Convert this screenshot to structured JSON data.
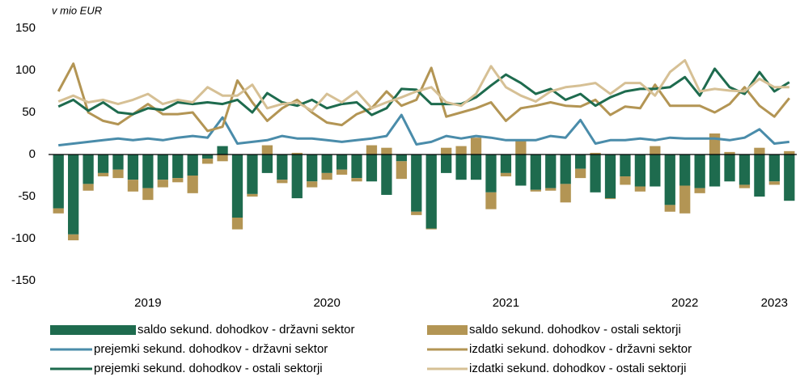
{
  "chart_data": {
    "type": "bar-line",
    "annotation": "v mio EUR",
    "categories": [
      null,
      null,
      null,
      null,
      null,
      null,
      "2019",
      null,
      null,
      null,
      null,
      null,
      null,
      null,
      null,
      null,
      null,
      null,
      "2020",
      null,
      null,
      null,
      null,
      null,
      null,
      null,
      null,
      null,
      null,
      null,
      "2021",
      null,
      null,
      null,
      null,
      null,
      null,
      null,
      null,
      null,
      null,
      null,
      "2022",
      null,
      null,
      null,
      null,
      null,
      "2023",
      null
    ],
    "ylim": [
      -150,
      150
    ],
    "yticks": [
      -150,
      -100,
      -50,
      0,
      50,
      100,
      150
    ],
    "series": [
      {
        "name": "saldo sekund. dohodkov - državni sektor",
        "kind": "bar",
        "color": "#1e6b4e",
        "values": [
          -64,
          -95,
          -35,
          -22,
          -18,
          -30,
          -40,
          -30,
          -28,
          -25,
          -5,
          10,
          -75,
          -47,
          -22,
          -30,
          -52,
          -32,
          -22,
          -18,
          -28,
          -32,
          -48,
          -8,
          -68,
          -88,
          -22,
          -30,
          -30,
          -45,
          -22,
          -37,
          -42,
          -40,
          -35,
          -17,
          -45,
          -52,
          -26,
          -38,
          -38,
          -60,
          -37,
          -40,
          -38,
          -32,
          -36,
          -50,
          -32,
          -55
        ]
      },
      {
        "name": "saldo sekund. dohodkov - ostali sektorji",
        "kind": "bar",
        "color": "#b39554",
        "values": [
          -6,
          -7,
          -8,
          -4,
          -10,
          -14,
          -14,
          -9,
          -5,
          -21,
          -6,
          -8,
          -14,
          -3,
          11,
          -4,
          2,
          -7,
          -8,
          -6,
          -4,
          11,
          8,
          -21,
          -4,
          -1,
          8,
          10,
          20,
          -20,
          -4,
          16,
          -2,
          -3,
          -22,
          -11,
          2,
          -1,
          -10,
          -6,
          10,
          -8,
          -33,
          -6,
          25,
          3,
          -4,
          8,
          -4,
          4
        ]
      },
      {
        "name": "prejemki sekund. dohodkov - državni sektor",
        "kind": "line",
        "color": "#4a8caa",
        "values": [
          11,
          13,
          15,
          17,
          19,
          17,
          19,
          17,
          20,
          22,
          20,
          44,
          13,
          15,
          17,
          22,
          19,
          19,
          17,
          15,
          17,
          19,
          22,
          47,
          12,
          15,
          22,
          19,
          22,
          20,
          17,
          17,
          17,
          22,
          20,
          41,
          13,
          17,
          17,
          19,
          17,
          20,
          19,
          19,
          19,
          17,
          20,
          30,
          13,
          15
        ]
      },
      {
        "name": "izdatki sekund. dohodkov - državni sektor",
        "kind": "line",
        "color": "#b39554",
        "values": [
          75,
          108,
          50,
          40,
          36,
          48,
          60,
          48,
          48,
          50,
          28,
          33,
          88,
          62,
          40,
          55,
          65,
          50,
          38,
          35,
          48,
          55,
          75,
          58,
          65,
          103,
          45,
          50,
          55,
          62,
          40,
          55,
          58,
          62,
          58,
          57,
          65,
          47,
          57,
          55,
          83,
          58,
          58,
          58,
          50,
          60,
          80,
          58,
          45,
          67
        ]
      },
      {
        "name": "prejemki sekund. dohodkov - ostali sektorji",
        "kind": "line",
        "color": "#1e6b4e",
        "values": [
          57,
          65,
          52,
          62,
          50,
          48,
          55,
          53,
          62,
          60,
          62,
          60,
          65,
          50,
          73,
          62,
          58,
          65,
          55,
          60,
          62,
          47,
          55,
          78,
          77,
          60,
          60,
          60,
          68,
          82,
          95,
          85,
          72,
          78,
          65,
          72,
          58,
          68,
          75,
          78,
          78,
          80,
          92,
          70,
          102,
          80,
          72,
          98,
          75,
          86
        ]
      },
      {
        "name": "izdatki sekund. dohodkov - ostali sektorji",
        "kind": "line",
        "color": "#d6c095",
        "values": [
          63,
          70,
          62,
          65,
          60,
          65,
          72,
          60,
          65,
          62,
          80,
          70,
          70,
          83,
          55,
          60,
          62,
          52,
          72,
          62,
          75,
          55,
          62,
          68,
          75,
          80,
          62,
          58,
          72,
          105,
          80,
          70,
          63,
          75,
          80,
          82,
          85,
          72,
          85,
          85,
          70,
          98,
          112,
          75,
          78,
          76,
          75,
          90,
          80,
          80
        ]
      }
    ]
  }
}
